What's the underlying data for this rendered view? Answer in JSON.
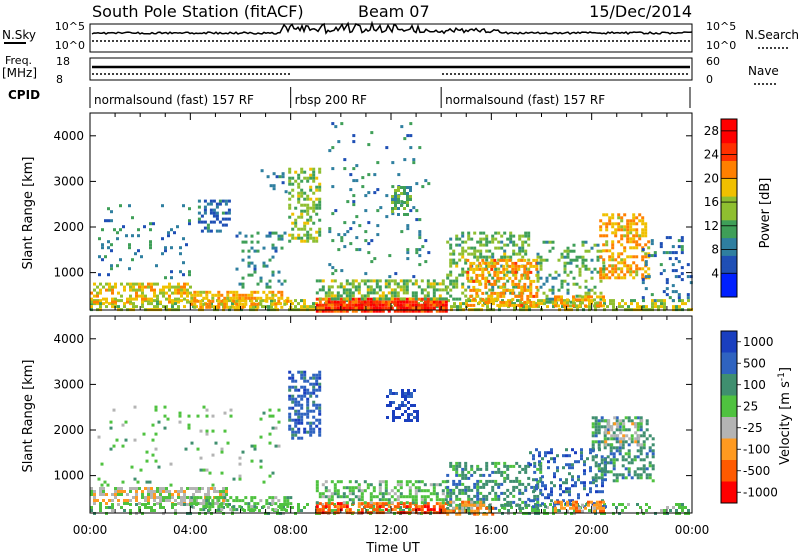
{
  "header": {
    "title": "South Pole Station (fitACF)",
    "beam": "Beam 07",
    "date": "15/Dec/2014"
  },
  "top_panels": {
    "nsky_label": "N.Sky",
    "nsky_ticks": [
      "10^5",
      "10^0"
    ],
    "nsearch_label": "N.Search",
    "nsearch_ticks": [
      "10^5",
      "10^0"
    ],
    "freq_label_1": "Freq.",
    "freq_label_2": "[MHz]",
    "freq_ticks": [
      "18",
      "8"
    ],
    "nave_label": "Nave",
    "nave_ticks": [
      "60",
      "0"
    ],
    "cpid_label": "CPID",
    "cpid_segments": [
      {
        "label": "normalsound (fast) 157 RF",
        "start_hour": 0,
        "end_hour": 8
      },
      {
        "label": "rbsp 200 RF",
        "start_hour": 8,
        "end_hour": 14
      },
      {
        "label": "normalsound (fast) 157 RF",
        "start_hour": 14,
        "end_hour": 24
      }
    ]
  },
  "chart_data": [
    {
      "type": "heatmap",
      "name": "power",
      "ylabel": "Slant Range [km]",
      "yticks": [
        "1000",
        "2000",
        "3000",
        "4000"
      ],
      "ylim": [
        180,
        4500
      ],
      "xlim_hours": [
        0,
        24
      ],
      "colorbar_label": "Power [dB]",
      "colorbar_ticks": [
        "4",
        "8",
        "12",
        "16",
        "20",
        "24",
        "28"
      ],
      "colorbar_range": [
        0,
        30
      ],
      "colors": [
        "#0020ff",
        "#1f4fb5",
        "#2f7fa0",
        "#3f9f58",
        "#8fbf30",
        "#f0c000",
        "#ff8000",
        "#ff3000",
        "#ff0000"
      ],
      "regions": [
        {
          "t0": 0.0,
          "t1": 24.0,
          "r0": 180,
          "r1": 420,
          "v": 16,
          "d": 0.55
        },
        {
          "t0": 0.0,
          "t1": 4.0,
          "r0": 380,
          "r1": 780,
          "v": 18,
          "d": 0.5
        },
        {
          "t0": 4.0,
          "t1": 8.0,
          "r0": 250,
          "r1": 600,
          "v": 20,
          "d": 0.6
        },
        {
          "t0": 0.2,
          "t1": 4.0,
          "r0": 900,
          "r1": 2500,
          "v": 8,
          "d": 0.08
        },
        {
          "t0": 4.3,
          "t1": 5.6,
          "r0": 1900,
          "r1": 2600,
          "v": 7,
          "d": 0.4
        },
        {
          "t0": 5.8,
          "t1": 7.8,
          "r0": 700,
          "r1": 1900,
          "v": 9,
          "d": 0.2
        },
        {
          "t0": 6.8,
          "t1": 7.8,
          "r0": 2800,
          "r1": 3400,
          "v": 6,
          "d": 0.15
        },
        {
          "t0": 7.9,
          "t1": 9.2,
          "r0": 1700,
          "r1": 3300,
          "v": 14,
          "d": 0.5
        },
        {
          "t0": 9.0,
          "t1": 14.2,
          "r0": 180,
          "r1": 450,
          "v": 27,
          "d": 0.92
        },
        {
          "t0": 9.0,
          "t1": 14.2,
          "r0": 450,
          "r1": 850,
          "v": 14,
          "d": 0.55
        },
        {
          "t0": 9.5,
          "t1": 13.5,
          "r0": 900,
          "r1": 4300,
          "v": 8,
          "d": 0.06
        },
        {
          "t0": 12.0,
          "t1": 12.8,
          "r0": 2300,
          "r1": 2900,
          "v": 12,
          "d": 0.45
        },
        {
          "t0": 14.2,
          "t1": 17.5,
          "r0": 400,
          "r1": 1900,
          "v": 13,
          "d": 0.35
        },
        {
          "t0": 15.0,
          "t1": 17.8,
          "r0": 300,
          "r1": 1300,
          "v": 21,
          "d": 0.5
        },
        {
          "t0": 17.8,
          "t1": 20.5,
          "r0": 350,
          "r1": 1700,
          "v": 12,
          "d": 0.3
        },
        {
          "t0": 18.5,
          "t1": 20.5,
          "r0": 250,
          "r1": 500,
          "v": 20,
          "d": 0.6
        },
        {
          "t0": 20.3,
          "t1": 22.3,
          "r0": 900,
          "r1": 2300,
          "v": 20,
          "d": 0.5
        },
        {
          "t0": 22.0,
          "t1": 24.0,
          "r0": 400,
          "r1": 1800,
          "v": 6,
          "d": 0.15
        }
      ]
    },
    {
      "type": "heatmap",
      "name": "velocity",
      "ylabel": "Slant Range [km]",
      "yticks": [
        "1000",
        "2000",
        "3000",
        "4000"
      ],
      "ylim": [
        180,
        4500
      ],
      "xlabel": "Time UT",
      "xticks": [
        "00:00",
        "04:00",
        "08:00",
        "12:00",
        "16:00",
        "20:00",
        "00:00"
      ],
      "xlim_hours": [
        0,
        24
      ],
      "colorbar_label": "Velocity [m s",
      "colorbar_label_sup": "-1",
      "colorbar_label_end": "]",
      "colorbar_ticks": [
        "1000",
        "500",
        "100",
        "25",
        "-25",
        "-100",
        "-500",
        "-1000"
      ],
      "colors": [
        "#1a3fbf",
        "#2f63c0",
        "#3f8f6f",
        "#4fc23f",
        "#b4b4b4",
        "#ff9a20",
        "#ff5a00",
        "#ff0000"
      ],
      "regions": [
        {
          "t0": 0.0,
          "t1": 5.5,
          "r0": 400,
          "r1": 750,
          "v": 4,
          "d": 0.55
        },
        {
          "t0": 0.0,
          "t1": 24.0,
          "r0": 180,
          "r1": 400,
          "v": 3,
          "d": 0.35
        },
        {
          "t0": 0.3,
          "t1": 7.5,
          "r0": 800,
          "r1": 2600,
          "v": 3,
          "d": 0.06
        },
        {
          "t0": 4.0,
          "t1": 8.0,
          "r0": 250,
          "r1": 550,
          "v": 3,
          "d": 0.5
        },
        {
          "t0": 7.9,
          "t1": 9.2,
          "r0": 1800,
          "r1": 3300,
          "v": 1,
          "d": 0.5
        },
        {
          "t0": 9.0,
          "t1": 14.2,
          "r0": 180,
          "r1": 420,
          "v": 6,
          "d": 0.7
        },
        {
          "t0": 9.0,
          "t1": 14.2,
          "r0": 420,
          "r1": 900,
          "v": 3,
          "d": 0.5
        },
        {
          "t0": 11.8,
          "t1": 13.0,
          "r0": 2200,
          "r1": 2900,
          "v": 0,
          "d": 0.45
        },
        {
          "t0": 14.2,
          "t1": 18.0,
          "r0": 300,
          "r1": 1300,
          "v": 2,
          "d": 0.45
        },
        {
          "t0": 14.2,
          "t1": 16.0,
          "r0": 180,
          "r1": 450,
          "v": 5,
          "d": 0.5
        },
        {
          "t0": 17.5,
          "t1": 20.5,
          "r0": 350,
          "r1": 1600,
          "v": 1,
          "d": 0.3
        },
        {
          "t0": 20.0,
          "t1": 22.5,
          "r0": 900,
          "r1": 2300,
          "v": 2,
          "d": 0.45
        },
        {
          "t0": 20.5,
          "t1": 22.0,
          "r0": 1700,
          "r1": 2300,
          "v": 4,
          "d": 0.3
        },
        {
          "t0": 18.5,
          "t1": 20.5,
          "r0": 200,
          "r1": 450,
          "v": 5,
          "d": 0.55
        }
      ]
    }
  ]
}
